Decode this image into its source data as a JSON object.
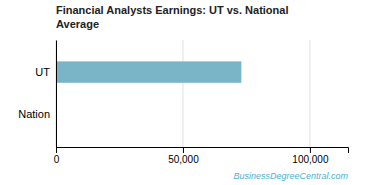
{
  "chart_data": {
    "type": "bar",
    "orientation": "horizontal",
    "title": "Financial Analysts Earnings: UT vs. National\nAverage",
    "categories": [
      "Nation",
      "UT"
    ],
    "values": [
      0,
      73000
    ],
    "color": "#7ab5c7",
    "xlim": [
      0,
      115000
    ],
    "xticks": [
      0,
      {
        "value": 50000,
        "label": "50,000"
      },
      {
        "value": 100000,
        "label": "100,000"
      }
    ],
    "grid": true,
    "annotations": [
      {
        "text": "BusinessDegreeCentral.com",
        "color": "#4ab3d0"
      }
    ]
  }
}
